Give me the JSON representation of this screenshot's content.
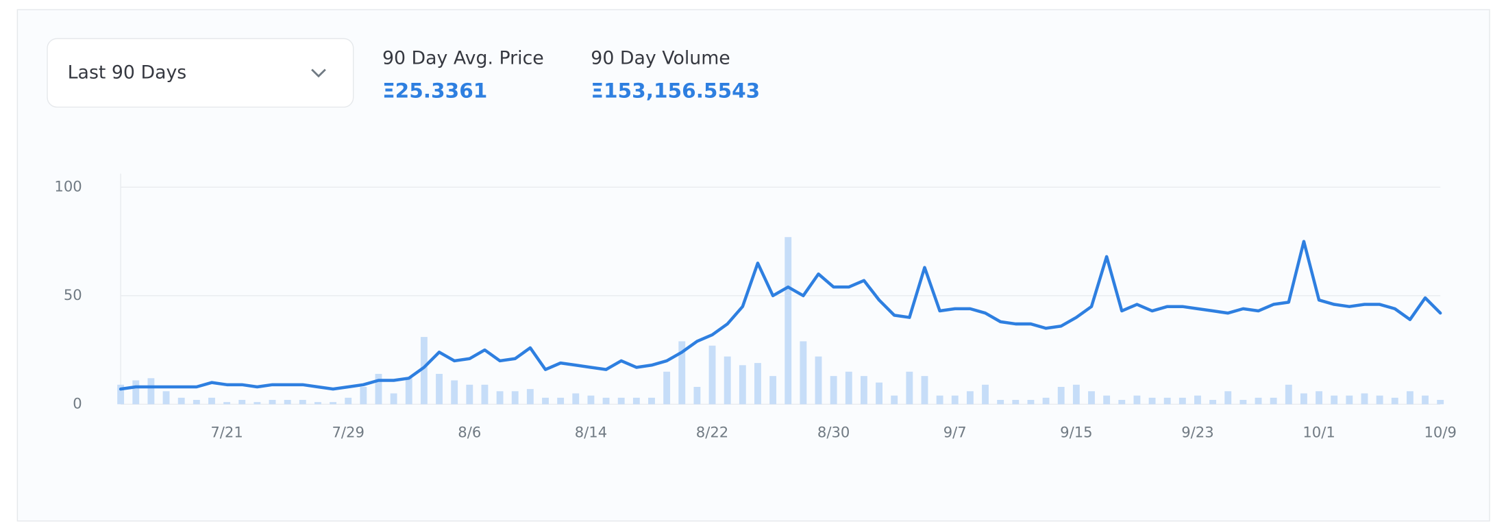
{
  "dropdown": {
    "label": "Last 90 Days"
  },
  "stats": [
    {
      "label": "90 Day Avg. Price",
      "value": "Ξ25.3361"
    },
    {
      "label": "90 Day Volume",
      "value": "Ξ153,156.5543"
    }
  ],
  "chart_data": {
    "type": "line",
    "categories": [
      null,
      null,
      null,
      null,
      null,
      null,
      null,
      "7/21",
      null,
      null,
      null,
      null,
      null,
      null,
      null,
      "7/29",
      null,
      null,
      null,
      null,
      null,
      null,
      null,
      "8/6",
      null,
      null,
      null,
      null,
      null,
      null,
      null,
      "8/14",
      null,
      null,
      null,
      null,
      null,
      null,
      null,
      "8/22",
      null,
      null,
      null,
      null,
      null,
      null,
      null,
      "8/30",
      null,
      null,
      null,
      null,
      null,
      null,
      null,
      "9/7",
      null,
      null,
      null,
      null,
      null,
      null,
      null,
      "9/15",
      null,
      null,
      null,
      null,
      null,
      null,
      null,
      "9/23",
      null,
      null,
      null,
      null,
      null,
      null,
      null,
      "10/1",
      null,
      null,
      null,
      null,
      null,
      null,
      null,
      "10/9"
    ],
    "series": [
      {
        "type": "bar",
        "color": "#c6ddf8",
        "values": [
          9,
          11,
          12,
          6,
          3,
          2,
          3,
          1,
          2,
          1,
          2,
          2,
          2,
          1,
          1,
          3,
          8,
          14,
          5,
          12,
          31,
          14,
          11,
          9,
          9,
          6,
          6,
          7,
          3,
          3,
          5,
          4,
          3,
          3,
          3,
          3,
          15,
          29,
          8,
          27,
          22,
          18,
          19,
          13,
          77,
          29,
          22,
          13,
          15,
          13,
          10,
          4,
          15,
          13,
          4,
          4,
          6,
          9,
          2,
          2,
          2,
          3,
          8,
          9,
          6,
          4,
          2,
          4,
          3,
          3,
          3,
          4,
          2,
          6,
          2,
          3,
          3,
          9,
          5,
          6,
          4,
          4,
          5,
          4,
          3,
          6,
          4,
          2
        ]
      },
      {
        "type": "line",
        "color": "#2e7fe0",
        "values": [
          7,
          8,
          8,
          8,
          8,
          8,
          10,
          9,
          9,
          8,
          9,
          9,
          9,
          8,
          7,
          8,
          9,
          11,
          11,
          12,
          17,
          24,
          20,
          21,
          25,
          20,
          21,
          26,
          16,
          19,
          18,
          17,
          16,
          20,
          17,
          18,
          20,
          24,
          29,
          32,
          37,
          45,
          65,
          50,
          54,
          50,
          60,
          54,
          54,
          57,
          48,
          41,
          40,
          63,
          43,
          44,
          44,
          42,
          38,
          37,
          37,
          35,
          36,
          40,
          45,
          68,
          43,
          46,
          43,
          45,
          45,
          44,
          43,
          42,
          44,
          43,
          46,
          47,
          75,
          48,
          46,
          45,
          46,
          46,
          44,
          39,
          49,
          42
        ]
      }
    ],
    "ylim": [
      0,
      100
    ],
    "yticks": [
      0,
      50,
      100
    ],
    "grid": true
  }
}
